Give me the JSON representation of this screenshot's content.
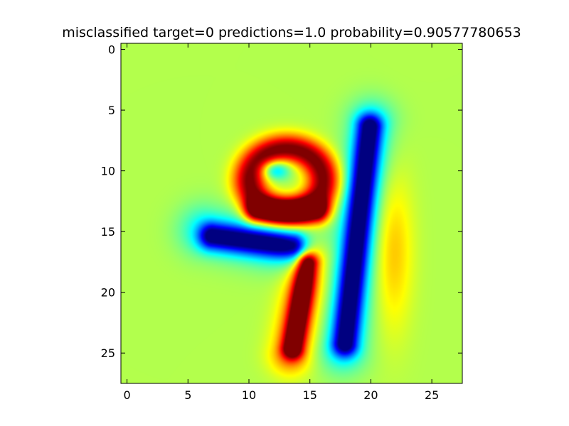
{
  "chart_data": {
    "type": "heatmap",
    "title": "misclassified target=0 predictions=1.0 probability=0.90577780653",
    "xlabel": "",
    "ylabel": "",
    "xlim": [
      -0.5,
      27.5
    ],
    "ylim": [
      27.5,
      -0.5
    ],
    "xticks": [
      0,
      5,
      10,
      15,
      20,
      25
    ],
    "yticks": [
      0,
      5,
      10,
      15,
      20,
      25
    ],
    "colormap": "jet",
    "vmin": -1,
    "vmax": 1,
    "background_value": 0.1,
    "interpolation": "smooth",
    "grid": false,
    "features": [
      {
        "name": "loop-outer-red",
        "kind": "ring",
        "cx": 13.1,
        "cy": 10.8,
        "rx": 3.0,
        "ry": 2.6,
        "width": 1.25,
        "value": 0.95
      },
      {
        "name": "loop-inner-blue",
        "kind": "blob",
        "cx": 12.1,
        "cy": 9.9,
        "rx": 1.2,
        "ry": 0.8,
        "value": -0.55
      },
      {
        "name": "left-bar-blue",
        "kind": "segment",
        "x1": 7.0,
        "y1": 15.4,
        "x2": 13.6,
        "y2": 16.2,
        "width": 1.1,
        "value": -0.95
      },
      {
        "name": "left-bar-cyan-halo",
        "kind": "segment",
        "x1": 6.3,
        "y1": 14.9,
        "x2": 14.3,
        "y2": 16.6,
        "width": 2.1,
        "value": -0.35
      },
      {
        "name": "right-stroke-blue",
        "kind": "segment",
        "x1": 19.9,
        "y1": 6.4,
        "x2": 17.9,
        "y2": 24.2,
        "width": 1.05,
        "value": -1.0
      },
      {
        "name": "right-stroke-cyan-halo",
        "kind": "segment",
        "x1": 20.1,
        "y1": 6.0,
        "x2": 17.7,
        "y2": 24.8,
        "width": 2.0,
        "value": -0.35
      },
      {
        "name": "lower-stroke-red",
        "kind": "segment",
        "x1": 14.8,
        "y1": 17.6,
        "x2": 13.6,
        "y2": 24.6,
        "width": 0.85,
        "value": 1.0
      },
      {
        "name": "lower-stroke-yellow-halo",
        "kind": "segment",
        "x1": 15.0,
        "y1": 17.2,
        "x2": 13.4,
        "y2": 25.1,
        "width": 1.7,
        "value": 0.45
      },
      {
        "name": "right-side-yellow-glow",
        "kind": "blob",
        "cx": 21.8,
        "cy": 16.5,
        "rx": 1.6,
        "ry": 6.5,
        "value": 0.28
      },
      {
        "name": "loop-bottom-orange",
        "kind": "segment",
        "x1": 10.6,
        "y1": 13.3,
        "x2": 15.6,
        "y2": 13.3,
        "width": 1.0,
        "value": 0.85
      }
    ]
  }
}
